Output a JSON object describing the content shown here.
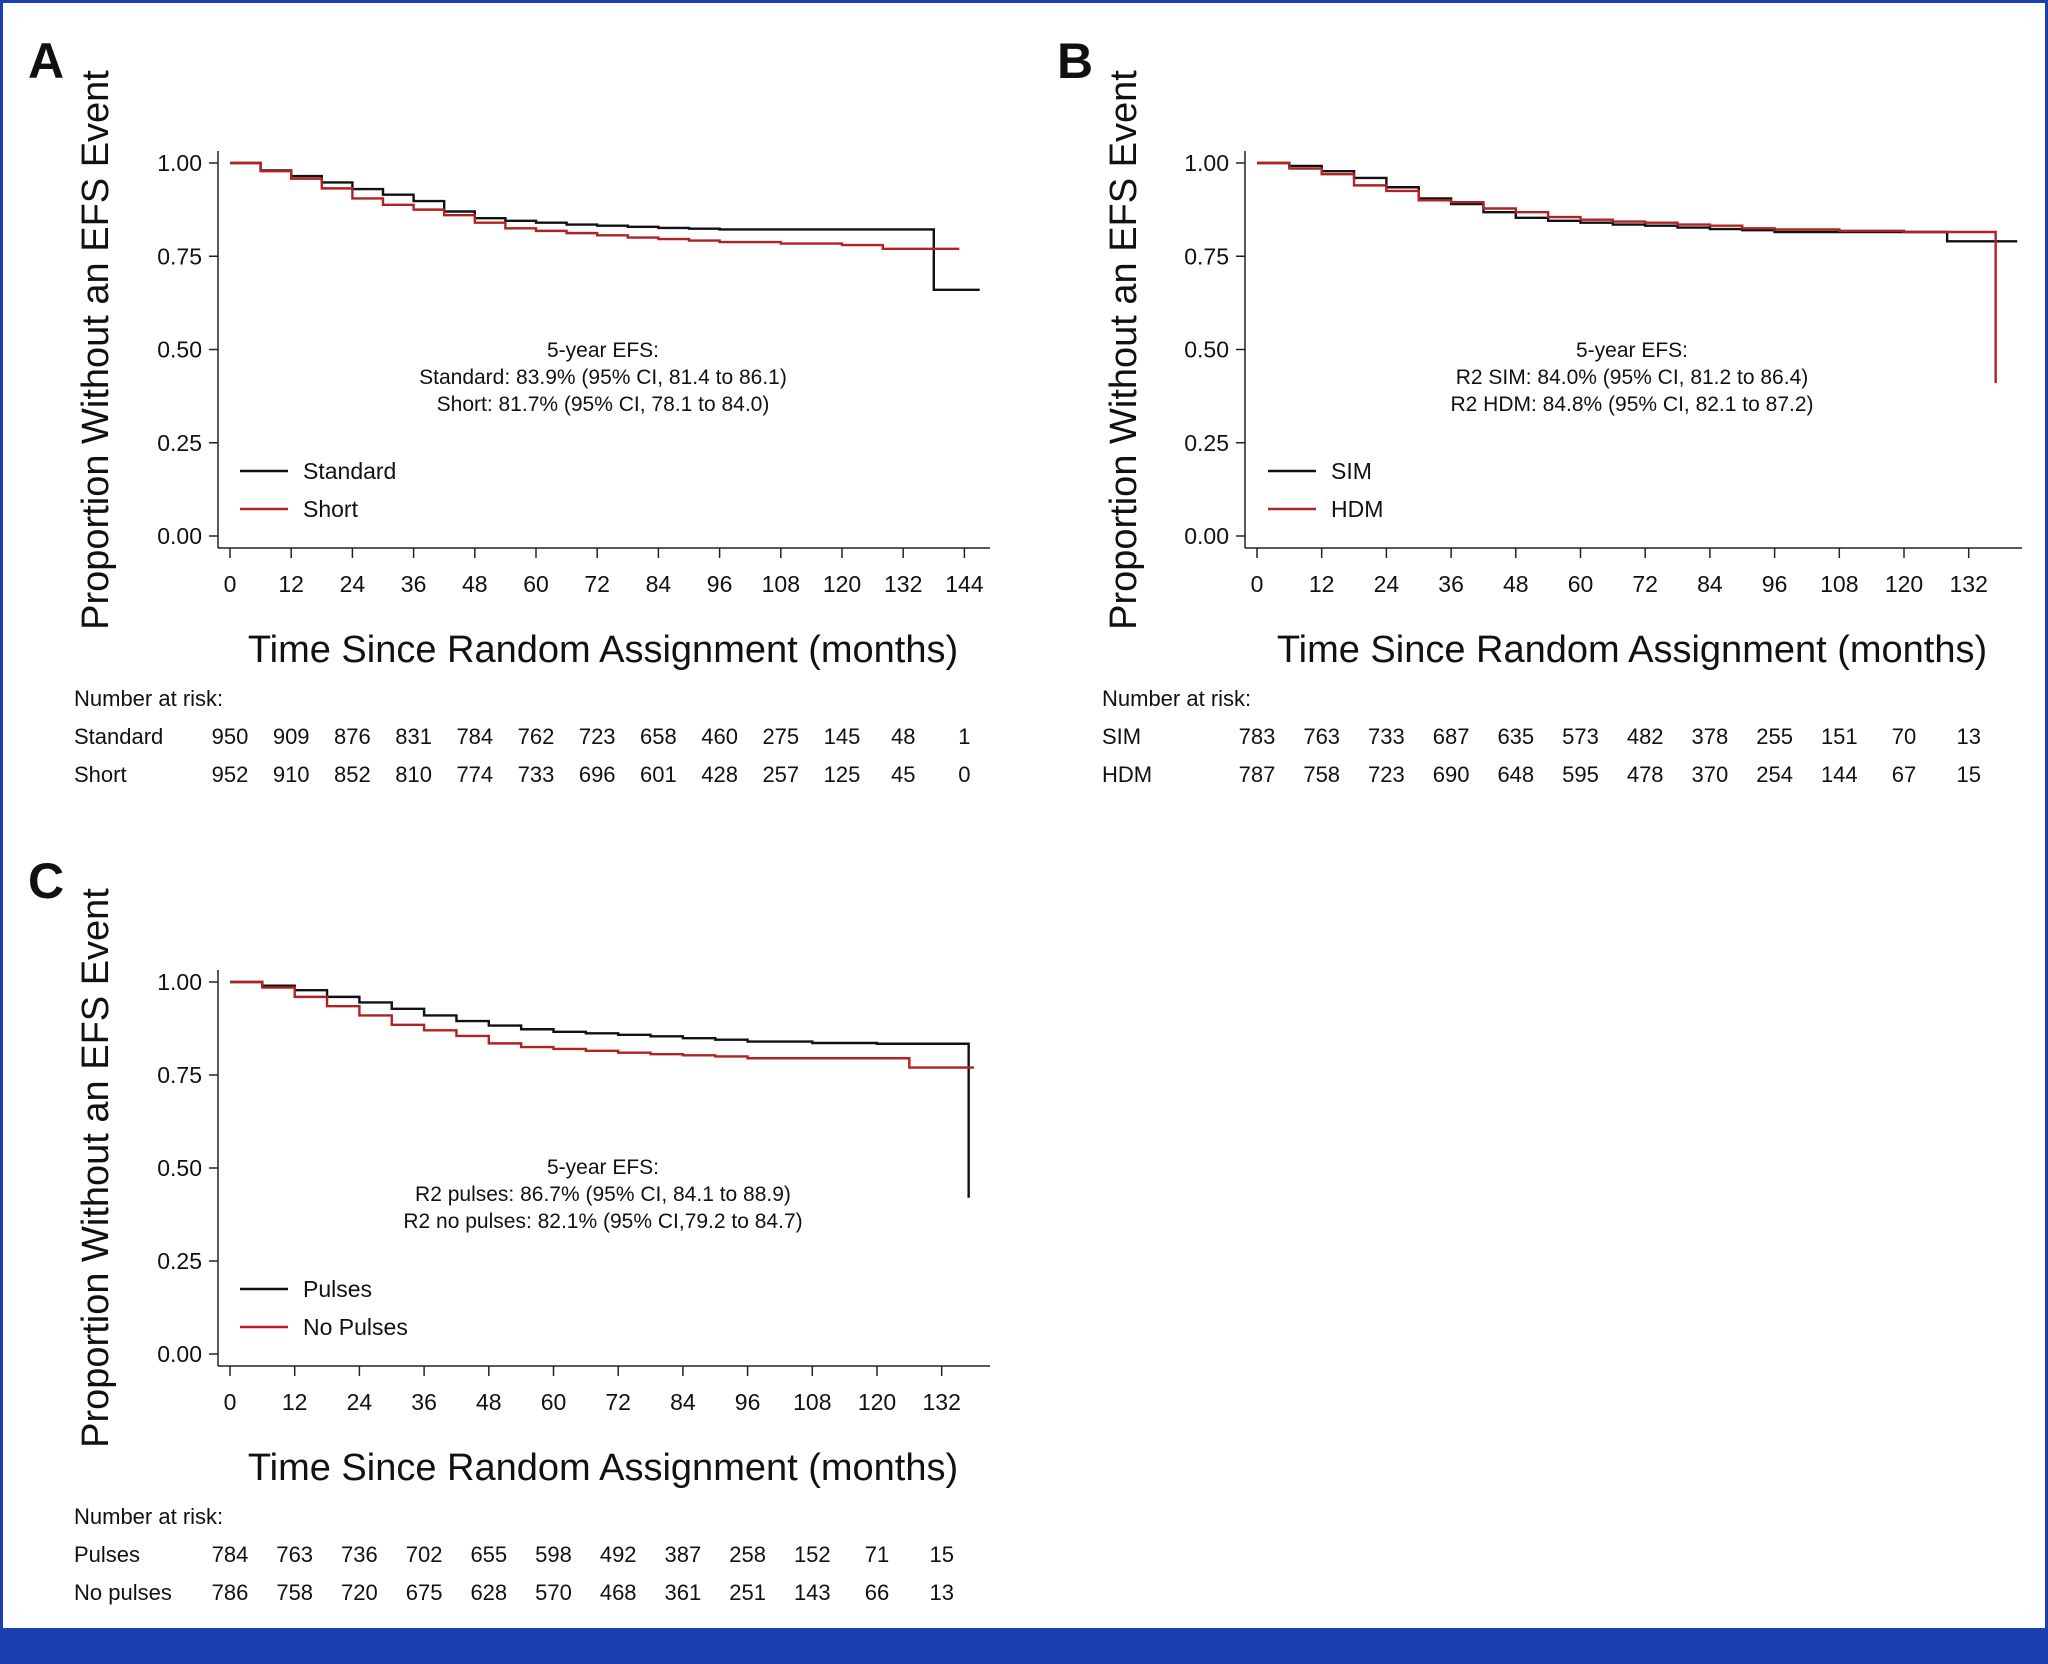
{
  "figure": {
    "colors": {
      "standard": "#111111",
      "experimental": "#b22222",
      "frame": "#1a3fb0"
    }
  },
  "chart_data": [
    {
      "type": "line",
      "panel": "A",
      "ylabel": "Proportion Without an EFS Event",
      "xlabel": "Time Since Random Assignment (months)",
      "ylim": [
        0,
        1
      ],
      "xlim": [
        0,
        147
      ],
      "yticks": [
        "0.00",
        "0.25",
        "0.50",
        "0.75",
        "1.00"
      ],
      "ytick_values": [
        0,
        0.25,
        0.5,
        0.75,
        1.0
      ],
      "xticks": [
        "0",
        "12",
        "24",
        "36",
        "48",
        "60",
        "72",
        "84",
        "96",
        "108",
        "120",
        "132",
        "144"
      ],
      "annotation": [
        "5-year EFS:",
        "Standard: 83.9% (95% CI, 81.4 to 86.1)",
        "Short: 81.7% (95% CI, 78.1 to 84.0)"
      ],
      "legend": [
        "Standard",
        "Short"
      ],
      "series": [
        {
          "name": "Standard",
          "color": "#111111",
          "x": [
            0,
            6,
            12,
            18,
            24,
            30,
            36,
            42,
            48,
            54,
            60,
            66,
            72,
            78,
            84,
            90,
            96,
            108,
            120,
            132,
            138,
            138,
            147
          ],
          "y": [
            1.0,
            0.98,
            0.965,
            0.948,
            0.93,
            0.915,
            0.898,
            0.87,
            0.852,
            0.845,
            0.84,
            0.835,
            0.832,
            0.829,
            0.826,
            0.824,
            0.822,
            0.822,
            0.822,
            0.822,
            0.822,
            0.66,
            0.66
          ]
        },
        {
          "name": "Short",
          "color": "#b22222",
          "x": [
            0,
            6,
            12,
            18,
            24,
            30,
            36,
            42,
            48,
            54,
            60,
            66,
            72,
            78,
            84,
            90,
            96,
            108,
            120,
            128,
            128,
            143
          ],
          "y": [
            1.0,
            0.978,
            0.958,
            0.932,
            0.905,
            0.888,
            0.875,
            0.86,
            0.84,
            0.825,
            0.818,
            0.812,
            0.806,
            0.8,
            0.796,
            0.792,
            0.788,
            0.784,
            0.78,
            0.778,
            0.77,
            0.77
          ]
        }
      ],
      "risk_table": {
        "title": "Number at risk:",
        "rows": [
          {
            "label": "Standard",
            "values": [
              "950",
              "909",
              "876",
              "831",
              "784",
              "762",
              "723",
              "658",
              "460",
              "275",
              "145",
              "48",
              "1"
            ]
          },
          {
            "label": "Short",
            "values": [
              "952",
              "910",
              "852",
              "810",
              "774",
              "733",
              "696",
              "601",
              "428",
              "257",
              "125",
              "45",
              "0"
            ]
          }
        ]
      }
    },
    {
      "type": "line",
      "panel": "B",
      "ylabel": "Proportion Without an EFS Event",
      "xlabel": "Time Since Random Assignment (months)",
      "ylim": [
        0,
        1
      ],
      "xlim": [
        0,
        141
      ],
      "yticks": [
        "0.00",
        "0.25",
        "0.50",
        "0.75",
        "1.00"
      ],
      "ytick_values": [
        0,
        0.25,
        0.5,
        0.75,
        1.0
      ],
      "xticks": [
        "0",
        "12",
        "24",
        "36",
        "48",
        "60",
        "72",
        "84",
        "96",
        "108",
        "120",
        "132"
      ],
      "annotation": [
        "5-year EFS:",
        "R2 SIM: 84.0% (95% CI, 81.2 to 86.4)",
        "R2 HDM: 84.8% (95% CI, 82.1 to 87.2)"
      ],
      "legend": [
        "SIM",
        "HDM"
      ],
      "series": [
        {
          "name": "SIM",
          "color": "#111111",
          "x": [
            0,
            6,
            12,
            18,
            24,
            30,
            36,
            42,
            48,
            54,
            60,
            66,
            72,
            78,
            84,
            90,
            96,
            108,
            120,
            128,
            128,
            141
          ],
          "y": [
            1.0,
            0.992,
            0.978,
            0.96,
            0.935,
            0.905,
            0.89,
            0.868,
            0.853,
            0.845,
            0.84,
            0.835,
            0.832,
            0.827,
            0.823,
            0.82,
            0.815,
            0.815,
            0.815,
            0.815,
            0.79,
            0.79
          ]
        },
        {
          "name": "HDM",
          "color": "#b22222",
          "x": [
            0,
            6,
            12,
            18,
            24,
            30,
            36,
            42,
            48,
            54,
            60,
            66,
            72,
            78,
            84,
            90,
            96,
            108,
            120,
            132,
            137,
            137
          ],
          "y": [
            1.0,
            0.985,
            0.97,
            0.94,
            0.925,
            0.9,
            0.895,
            0.878,
            0.868,
            0.855,
            0.848,
            0.843,
            0.84,
            0.835,
            0.832,
            0.825,
            0.822,
            0.818,
            0.815,
            0.815,
            0.815,
            0.41
          ]
        }
      ],
      "risk_table": {
        "title": "Number at risk:",
        "rows": [
          {
            "label": "SIM",
            "values": [
              "783",
              "763",
              "733",
              "687",
              "635",
              "573",
              "482",
              "378",
              "255",
              "151",
              "70",
              "13"
            ]
          },
          {
            "label": "HDM",
            "values": [
              "787",
              "758",
              "723",
              "690",
              "648",
              "595",
              "478",
              "370",
              "254",
              "144",
              "67",
              "15"
            ]
          }
        ]
      }
    },
    {
      "type": "line",
      "panel": "C",
      "ylabel": "Proportion Without an EFS Event",
      "xlabel": "Time Since Random Assignment (months)",
      "ylim": [
        0,
        1
      ],
      "xlim": [
        0,
        141
      ],
      "yticks": [
        "0.00",
        "0.25",
        "0.50",
        "0.75",
        "1.00"
      ],
      "ytick_values": [
        0,
        0.25,
        0.5,
        0.75,
        1.0
      ],
      "xticks": [
        "0",
        "12",
        "24",
        "36",
        "48",
        "60",
        "72",
        "84",
        "96",
        "108",
        "120",
        "132"
      ],
      "annotation": [
        "5-year EFS:",
        "R2 pulses: 86.7% (95% CI, 84.1 to 88.9)",
        "R2 no pulses: 82.1% (95% CI,79.2 to 84.7)"
      ],
      "legend": [
        "Pulses",
        "No Pulses"
      ],
      "series": [
        {
          "name": "Pulses",
          "color": "#111111",
          "x": [
            0,
            6,
            12,
            18,
            24,
            30,
            36,
            42,
            48,
            54,
            60,
            66,
            72,
            78,
            84,
            90,
            96,
            108,
            120,
            132,
            137,
            137
          ],
          "y": [
            1.0,
            0.99,
            0.978,
            0.96,
            0.945,
            0.928,
            0.91,
            0.895,
            0.883,
            0.873,
            0.866,
            0.862,
            0.858,
            0.854,
            0.849,
            0.845,
            0.84,
            0.836,
            0.834,
            0.834,
            0.834,
            0.42
          ]
        },
        {
          "name": "No Pulses",
          "color": "#b22222",
          "x": [
            0,
            6,
            12,
            18,
            24,
            30,
            36,
            42,
            48,
            54,
            60,
            66,
            72,
            78,
            84,
            90,
            96,
            108,
            120,
            126,
            126,
            138
          ],
          "y": [
            1.0,
            0.985,
            0.96,
            0.935,
            0.91,
            0.885,
            0.87,
            0.855,
            0.835,
            0.825,
            0.82,
            0.815,
            0.81,
            0.806,
            0.803,
            0.8,
            0.795,
            0.795,
            0.795,
            0.795,
            0.77,
            0.77
          ]
        }
      ],
      "risk_table": {
        "title": "Number at risk:",
        "rows": [
          {
            "label": "Pulses",
            "values": [
              "784",
              "763",
              "736",
              "702",
              "655",
              "598",
              "492",
              "387",
              "258",
              "152",
              "71",
              "15"
            ]
          },
          {
            "label": "No pulses",
            "values": [
              "786",
              "758",
              "720",
              "675",
              "628",
              "570",
              "468",
              "361",
              "251",
              "143",
              "66",
              "13"
            ]
          }
        ]
      }
    }
  ]
}
